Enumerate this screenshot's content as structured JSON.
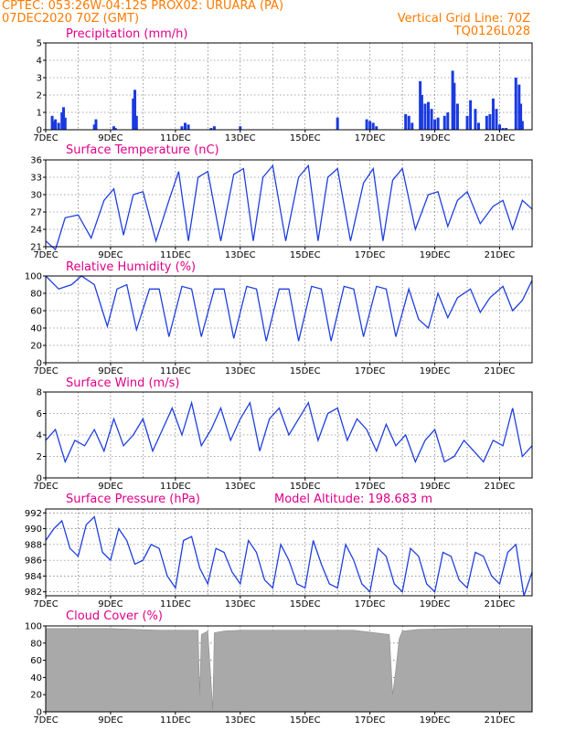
{
  "header": {
    "line1_left": "CPTEC:  053:26W-04:12S   PROX02: URUARA (PA)",
    "line2_left": "07DEC2020 70Z (GMT)",
    "line2_right": "Vertical Grid Line: 70Z",
    "line3_right": "TQ0126L028"
  },
  "x_ticks": [
    "7DEC",
    "9DEC",
    "11DEC",
    "13DEC",
    "15DEC",
    "17DEC",
    "19DEC",
    "21DEC"
  ],
  "colors": {
    "line": "#1f3fe0",
    "bar": "#1a3ae0",
    "cloud": "#a9a9a9",
    "title": "#e0008a",
    "header": "#ff7a00"
  },
  "chart_data": [
    {
      "type": "bar",
      "title": "Precipitation (mm/h)",
      "ylim": [
        0,
        5
      ],
      "yticks": [
        0,
        1,
        2,
        3,
        4,
        5
      ],
      "x_days": [
        7.2,
        7.25,
        7.3,
        7.4,
        7.5,
        7.55,
        7.6,
        8.5,
        8.55,
        9.1,
        9.15,
        9.7,
        9.75,
        9.8,
        11.2,
        11.3,
        11.4,
        12.1,
        12.2,
        13.0,
        16.0,
        16.9,
        17.0,
        17.1,
        17.2,
        18.1,
        18.2,
        18.3,
        18.55,
        18.6,
        18.7,
        18.8,
        18.9,
        19.0,
        19.1,
        19.3,
        19.4,
        19.55,
        19.6,
        19.7,
        20.0,
        20.1,
        20.25,
        20.35,
        20.6,
        20.7,
        20.8,
        20.9,
        21.0,
        21.1,
        21.2,
        21.5,
        21.6,
        21.65,
        21.7
      ],
      "values": [
        0.8,
        0.5,
        0.6,
        0.4,
        1.0,
        1.3,
        0.7,
        0.3,
        0.6,
        0.2,
        0.1,
        1.8,
        2.3,
        0.8,
        0.2,
        0.4,
        0.3,
        0.1,
        0.2,
        0.2,
        0.7,
        0.6,
        0.5,
        0.4,
        0.2,
        0.9,
        0.8,
        0.4,
        2.8,
        2.0,
        1.5,
        1.6,
        1.2,
        0.6,
        0.7,
        0.8,
        1.0,
        3.4,
        2.7,
        1.5,
        0.8,
        1.7,
        1.2,
        0.4,
        0.8,
        0.9,
        1.8,
        1.2,
        0.3,
        0.1,
        0.1,
        3.0,
        2.6,
        1.5,
        0.5
      ]
    },
    {
      "type": "line",
      "title": "Surface Temperature (nC)",
      "ylim": [
        21,
        36
      ],
      "yticks": [
        21,
        24,
        27,
        30,
        33,
        36
      ],
      "x_days": [
        7.0,
        7.3,
        7.6,
        8.0,
        8.4,
        8.8,
        9.1,
        9.4,
        9.7,
        10.0,
        10.4,
        10.8,
        11.1,
        11.4,
        11.7,
        12.0,
        12.4,
        12.8,
        13.1,
        13.4,
        13.7,
        14.0,
        14.4,
        14.8,
        15.1,
        15.4,
        15.7,
        16.0,
        16.4,
        16.8,
        17.1,
        17.4,
        17.7,
        18.0,
        18.4,
        18.8,
        19.1,
        19.4,
        19.7,
        20.0,
        20.4,
        20.8,
        21.1,
        21.4,
        21.7,
        22.0
      ],
      "values": [
        22,
        20.5,
        26,
        26.5,
        22.5,
        29,
        31,
        23,
        30,
        30.5,
        22,
        29,
        34,
        22,
        33,
        34,
        22,
        33.5,
        34.5,
        22,
        33,
        35,
        22,
        33,
        35,
        22,
        33,
        34.5,
        22,
        32,
        34.5,
        22,
        32.5,
        34.5,
        24,
        30,
        30.5,
        24.5,
        29,
        30.5,
        25,
        28,
        29,
        24,
        29,
        27.5
      ]
    },
    {
      "type": "line",
      "title": "Relative Humidity (%)",
      "ylim": [
        0,
        100
      ],
      "yticks": [
        0,
        20,
        40,
        60,
        80,
        100
      ],
      "x_days": [
        7.0,
        7.4,
        7.8,
        8.1,
        8.5,
        8.9,
        9.2,
        9.5,
        9.8,
        10.2,
        10.5,
        10.8,
        11.2,
        11.5,
        11.8,
        12.2,
        12.5,
        12.8,
        13.2,
        13.5,
        13.8,
        14.2,
        14.5,
        14.8,
        15.2,
        15.5,
        15.8,
        16.2,
        16.5,
        16.8,
        17.2,
        17.5,
        17.8,
        18.2,
        18.5,
        18.8,
        19.1,
        19.4,
        19.7,
        20.1,
        20.4,
        20.7,
        21.1,
        21.4,
        21.7,
        22.0
      ],
      "values": [
        100,
        85,
        90,
        100,
        90,
        42,
        85,
        90,
        38,
        85,
        85,
        30,
        88,
        85,
        30,
        85,
        85,
        28,
        88,
        85,
        25,
        85,
        85,
        25,
        88,
        85,
        25,
        88,
        85,
        30,
        88,
        85,
        30,
        85,
        50,
        40,
        80,
        52,
        75,
        85,
        58,
        75,
        88,
        60,
        72,
        95
      ]
    },
    {
      "type": "line",
      "title": "Surface Wind (m/s)",
      "ylim": [
        0,
        8
      ],
      "yticks": [
        0,
        2,
        4,
        6,
        8
      ],
      "x_days": [
        7.0,
        7.3,
        7.6,
        7.9,
        8.2,
        8.5,
        8.8,
        9.1,
        9.4,
        9.7,
        10.0,
        10.3,
        10.6,
        10.9,
        11.2,
        11.5,
        11.8,
        12.1,
        12.4,
        12.7,
        13.0,
        13.3,
        13.6,
        13.9,
        14.2,
        14.5,
        14.8,
        15.1,
        15.4,
        15.7,
        16.0,
        16.3,
        16.6,
        16.9,
        17.2,
        17.5,
        17.8,
        18.1,
        18.4,
        18.7,
        19.0,
        19.3,
        19.6,
        19.9,
        20.2,
        20.5,
        20.8,
        21.1,
        21.4,
        21.7,
        22.0
      ],
      "values": [
        3.5,
        4.5,
        1.5,
        3.5,
        3.0,
        4.5,
        2.5,
        5.5,
        3.0,
        4.0,
        5.5,
        2.5,
        4.5,
        6.5,
        4.0,
        7.0,
        3.0,
        4.5,
        6.5,
        3.5,
        5.5,
        7.0,
        2.5,
        5.5,
        6.5,
        4.0,
        5.5,
        7.0,
        3.5,
        6.0,
        6.5,
        3.5,
        5.5,
        4.5,
        2.5,
        5.0,
        3.0,
        4.0,
        1.5,
        3.5,
        4.5,
        1.5,
        2.0,
        3.5,
        2.5,
        1.5,
        3.5,
        3.0,
        6.5,
        2.0,
        3.0
      ]
    },
    {
      "type": "line",
      "title": "Surface Pressure (hPa)",
      "subtitle": "Model Altitude: 198.683 m",
      "ylim": [
        981.5,
        992.5
      ],
      "yticks": [
        982,
        984,
        986,
        988,
        990,
        992
      ],
      "x_days": [
        7.0,
        7.25,
        7.5,
        7.75,
        8.0,
        8.25,
        8.5,
        8.75,
        9.0,
        9.25,
        9.5,
        9.75,
        10.0,
        10.25,
        10.5,
        10.75,
        11.0,
        11.25,
        11.5,
        11.75,
        12.0,
        12.25,
        12.5,
        12.75,
        13.0,
        13.25,
        13.5,
        13.75,
        14.0,
        14.25,
        14.5,
        14.75,
        15.0,
        15.25,
        15.5,
        15.75,
        16.0,
        16.25,
        16.5,
        16.75,
        17.0,
        17.25,
        17.5,
        17.75,
        18.0,
        18.25,
        18.5,
        18.75,
        19.0,
        19.25,
        19.5,
        19.75,
        20.0,
        20.25,
        20.5,
        20.75,
        21.0,
        21.25,
        21.5,
        21.75,
        22.0
      ],
      "values": [
        988.5,
        990.0,
        991.0,
        987.5,
        986.5,
        990.5,
        991.5,
        987.0,
        986.0,
        990.0,
        988.5,
        985.5,
        986.0,
        988.0,
        987.5,
        984.0,
        982.5,
        988.5,
        989.0,
        985.0,
        983.0,
        987.5,
        987.0,
        984.5,
        983.0,
        988.5,
        987.0,
        983.5,
        982.5,
        988.0,
        986.0,
        983.0,
        982.5,
        988.5,
        985.5,
        983.0,
        982.5,
        988.0,
        986.0,
        983.0,
        982.0,
        987.5,
        986.5,
        983.0,
        982.0,
        987.5,
        986.5,
        983.0,
        982.0,
        987.0,
        986.5,
        983.5,
        982.5,
        987.0,
        986.5,
        984.0,
        983.0,
        987.0,
        988.0,
        981.5,
        984.5
      ]
    },
    {
      "type": "area",
      "title": "Cloud Cover (%)",
      "ylim": [
        0,
        100
      ],
      "yticks": [
        0,
        20,
        40,
        60,
        80,
        100
      ],
      "x_days": [
        7.0,
        9.0,
        10.5,
        11.7,
        11.75,
        11.8,
        12.0,
        12.1,
        12.15,
        12.2,
        12.5,
        13.0,
        16.5,
        17.6,
        17.7,
        17.8,
        17.9,
        18.0,
        18.5,
        20.0,
        22.0
      ],
      "values": [
        97,
        97,
        95,
        95,
        20,
        90,
        94,
        35,
        2,
        92,
        94,
        95,
        95,
        90,
        20,
        50,
        85,
        94,
        96,
        97,
        97
      ]
    }
  ]
}
